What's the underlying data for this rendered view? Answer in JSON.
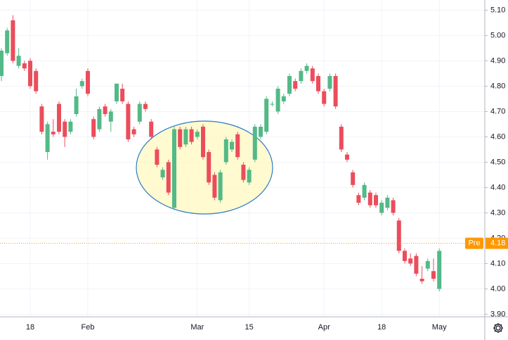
{
  "chart_data": {
    "type": "candlestick",
    "categories": [
      null,
      null,
      null,
      null,
      null,
      "18",
      null,
      null,
      null,
      null,
      null,
      null,
      null,
      null,
      null,
      "Feb",
      null,
      null,
      null,
      null,
      null,
      null,
      null,
      null,
      null,
      null,
      null,
      null,
      null,
      null,
      null,
      null,
      null,
      null,
      "Mar",
      null,
      null,
      null,
      null,
      null,
      null,
      null,
      null,
      "15",
      null,
      null,
      null,
      null,
      null,
      null,
      null,
      null,
      null,
      null,
      null,
      null,
      "Apr",
      null,
      null,
      null,
      null,
      null,
      null,
      null,
      null,
      null,
      "18",
      null,
      null,
      null,
      null,
      null,
      null,
      null,
      null,
      null,
      "May"
    ],
    "open": [
      4.84,
      4.93,
      5.06,
      4.88,
      4.89,
      4.9,
      4.86,
      4.72,
      4.54,
      4.62,
      4.73,
      4.66,
      4.62,
      4.69,
      4.8,
      4.86,
      4.67,
      4.63,
      4.72,
      4.66,
      4.74,
      4.79,
      4.73,
      4.63,
      4.66,
      4.73,
      4.66,
      4.55,
      4.44,
      4.5,
      4.32,
      4.63,
      4.57,
      4.63,
      4.6,
      4.64,
      4.54,
      4.45,
      4.35,
      4.5,
      4.55,
      4.61,
      4.49,
      4.42,
      4.51,
      4.6,
      4.62,
      4.73,
      4.7,
      4.74,
      4.77,
      4.82,
      4.82,
      4.86,
      4.87,
      4.84,
      4.78,
      4.79,
      4.84,
      4.64,
      4.53,
      4.46,
      4.37,
      4.36,
      4.38,
      4.37,
      4.3,
      4.32,
      4.35,
      4.27,
      4.15,
      4.12,
      4.13,
      4.04,
      4.08,
      4.07,
      4.0
    ],
    "high": [
      4.95,
      5.03,
      5.08,
      4.95,
      4.9,
      4.91,
      4.87,
      4.73,
      4.66,
      4.67,
      4.74,
      4.67,
      4.67,
      4.79,
      4.83,
      4.87,
      4.68,
      4.72,
      4.73,
      4.71,
      4.81,
      4.81,
      4.74,
      4.64,
      4.74,
      4.74,
      4.67,
      4.56,
      4.48,
      4.51,
      4.64,
      4.64,
      4.64,
      4.64,
      4.63,
      4.65,
      4.55,
      4.46,
      4.47,
      4.6,
      4.59,
      4.62,
      4.5,
      4.48,
      4.65,
      4.65,
      4.76,
      4.74,
      4.8,
      4.77,
      4.85,
      4.83,
      4.87,
      4.89,
      4.88,
      4.85,
      4.79,
      4.85,
      4.85,
      4.65,
      4.54,
      4.47,
      4.38,
      4.42,
      4.39,
      4.38,
      4.35,
      4.37,
      4.36,
      4.28,
      4.16,
      4.14,
      4.14,
      4.09,
      4.12,
      4.12,
      4.16
    ],
    "low": [
      4.82,
      4.92,
      4.89,
      4.87,
      4.86,
      4.79,
      4.77,
      4.61,
      4.51,
      4.6,
      4.61,
      4.56,
      4.61,
      4.68,
      4.79,
      4.76,
      4.59,
      4.62,
      4.68,
      4.62,
      4.73,
      4.73,
      4.58,
      4.6,
      4.65,
      4.7,
      4.59,
      4.48,
      4.43,
      4.37,
      4.31,
      4.55,
      4.56,
      4.57,
      4.59,
      4.51,
      4.41,
      4.35,
      4.34,
      4.49,
      4.54,
      4.51,
      4.42,
      4.41,
      4.5,
      4.59,
      4.61,
      4.72,
      4.69,
      4.73,
      4.76,
      4.78,
      4.81,
      4.85,
      4.81,
      4.77,
      4.72,
      4.78,
      4.71,
      4.54,
      4.5,
      4.4,
      4.33,
      4.35,
      4.32,
      4.32,
      4.29,
      4.31,
      4.29,
      4.14,
      4.1,
      4.09,
      4.05,
      4.02,
      4.07,
      4.03,
      3.99
    ],
    "close": [
      4.94,
      5.02,
      4.9,
      4.92,
      4.87,
      4.8,
      4.78,
      4.62,
      4.65,
      4.61,
      4.62,
      4.6,
      4.66,
      4.76,
      4.82,
      4.77,
      4.6,
      4.71,
      4.69,
      4.7,
      4.81,
      4.74,
      4.59,
      4.61,
      4.73,
      4.71,
      4.6,
      4.49,
      4.47,
      4.38,
      4.63,
      4.56,
      4.63,
      4.58,
      4.62,
      4.52,
      4.42,
      4.36,
      4.46,
      4.59,
      4.58,
      4.52,
      4.43,
      4.47,
      4.64,
      4.64,
      4.75,
      4.73,
      4.79,
      4.76,
      4.84,
      4.79,
      4.86,
      4.88,
      4.82,
      4.78,
      4.73,
      4.84,
      4.72,
      4.55,
      4.51,
      4.41,
      4.34,
      4.41,
      4.33,
      4.33,
      4.34,
      4.36,
      4.3,
      4.15,
      4.11,
      4.1,
      4.06,
      4.03,
      4.11,
      4.04,
      4.15
    ],
    "up_color": "#53b987",
    "down_color": "#eb4d5c",
    "ylim": [
      3.89,
      5.14
    ],
    "yticks": [
      {
        "value": 3.9,
        "label": "3.90"
      },
      {
        "value": 4.0,
        "label": "4.00"
      },
      {
        "value": 4.1,
        "label": "4.10"
      },
      {
        "value": 4.2,
        "label": "4.20"
      },
      {
        "value": 4.3,
        "label": "4.30"
      },
      {
        "value": 4.4,
        "label": "4.40"
      },
      {
        "value": 4.5,
        "label": "4.50"
      },
      {
        "value": 4.6,
        "label": "4.60"
      },
      {
        "value": 4.7,
        "label": "4.70"
      },
      {
        "value": 4.8,
        "label": "4.80"
      },
      {
        "value": 4.9,
        "label": "4.90"
      },
      {
        "value": 5.0,
        "label": "5.00"
      },
      {
        "value": 5.1,
        "label": "5.10"
      }
    ],
    "grid": true,
    "pre_market": {
      "label": "Pre",
      "value": 4.18,
      "color": "#ff9800"
    }
  }
}
